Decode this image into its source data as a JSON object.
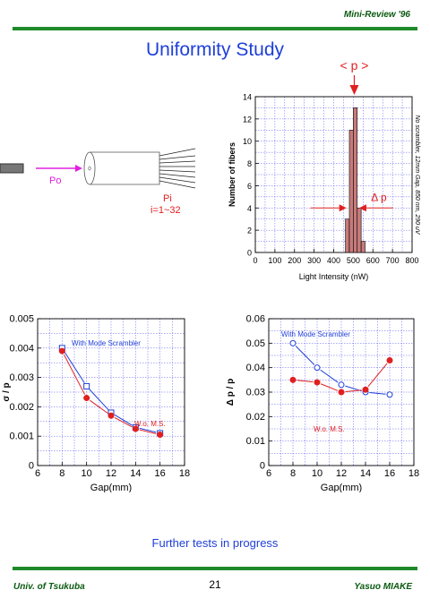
{
  "header": {
    "tag": "Mini-Review '96"
  },
  "title": "Uniformity Study",
  "fiber_diagram": {
    "input_label": "Po",
    "output_label": "Pi",
    "range_label": "i=1~32",
    "input_color": "#e020e0",
    "output_color": "#e02020"
  },
  "footer": {
    "left": "Univ. of Tsukuba",
    "page": "21",
    "right": "Yasuo MIAKE",
    "note": "Further tests in progress"
  },
  "chart_data": [
    {
      "type": "bar",
      "title": "",
      "xlabel": "Light Intensity (nW)",
      "ylabel": "Number of fibers",
      "side_note": "No scrambler, 12mm Gap, 850 nm, 290 uV",
      "mean_label": "< p >",
      "width_label": "Δ p",
      "xlim": [
        0,
        800
      ],
      "ylim": [
        0,
        14
      ],
      "xticks": [
        "0",
        "100",
        "200",
        "300",
        "400",
        "500",
        "600",
        "700",
        "800"
      ],
      "yticks": [
        "0",
        "2",
        "4",
        "6",
        "8",
        "10",
        "12",
        "14"
      ],
      "bins": [
        [
          460,
          3
        ],
        [
          480,
          11
        ],
        [
          500,
          13
        ],
        [
          520,
          4
        ],
        [
          540,
          1
        ]
      ],
      "bin_width": 20,
      "mean": 505,
      "width_marks": [
        465,
        530
      ],
      "bar_color": "#c87b7b"
    },
    {
      "type": "line",
      "xlabel": "Gap(mm)",
      "ylabel": "σ / p",
      "xlim": [
        6,
        18
      ],
      "ylim": [
        0,
        0.005
      ],
      "xticks": [
        "6",
        "8",
        "10",
        "12",
        "14",
        "16",
        "18"
      ],
      "yticks": [
        "0",
        "0.001",
        "0.002",
        "0.003",
        "0.004",
        "0.005"
      ],
      "series": [
        {
          "name": "With Mode Scrambler",
          "x": [
            8,
            10,
            12,
            14,
            16
          ],
          "y": [
            0.004,
            0.0027,
            0.0018,
            0.0013,
            0.0011
          ],
          "color": "#1f3fd8",
          "marker": "square"
        },
        {
          "name": "W.o. M.S.",
          "x": [
            8,
            10,
            12,
            14,
            16
          ],
          "y": [
            0.0039,
            0.0023,
            0.0017,
            0.00125,
            0.00105
          ],
          "color": "#e02020",
          "marker": "dot"
        }
      ]
    },
    {
      "type": "line",
      "xlabel": "Gap(mm)",
      "ylabel": "Δ p / p",
      "xlim": [
        6,
        18
      ],
      "ylim": [
        0,
        0.06
      ],
      "xticks": [
        "6",
        "8",
        "10",
        "12",
        "14",
        "16",
        "18"
      ],
      "yticks": [
        "0",
        "0.01",
        "0.02",
        "0.03",
        "0.04",
        "0.05",
        "0.06"
      ],
      "series": [
        {
          "name": "With Mode Scrambler",
          "x": [
            8,
            10,
            12,
            14,
            16
          ],
          "y": [
            0.05,
            0.04,
            0.033,
            0.03,
            0.029
          ],
          "color": "#1f3fd8",
          "marker": "circle"
        },
        {
          "name": "W.o. M.S.",
          "x": [
            8,
            10,
            12,
            14,
            16
          ],
          "y": [
            0.035,
            0.034,
            0.03,
            0.031,
            0.043
          ],
          "color": "#e02020",
          "marker": "dot"
        }
      ]
    }
  ]
}
